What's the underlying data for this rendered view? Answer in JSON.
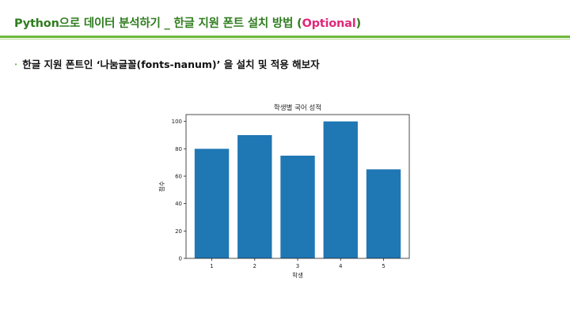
{
  "slide": {
    "title_main": "Python으로 데이터 분석하기 _ 한글 지원 폰트 설치 방법 (",
    "title_accent": "Optional",
    "title_close": ")",
    "bullet_symbol": "·",
    "bullet_text": "한글 지원 폰트인 ‘나눔글꼴(fonts-nanum)’ 을 설치 및 적용 해보자"
  },
  "colors": {
    "title": "#2e7d1e",
    "accent": "#e0287a",
    "rule": "#6fb83a",
    "bar": "#1f77b4"
  },
  "chart_data": {
    "type": "bar",
    "title": "학생별 국어 성적",
    "xlabel": "학생",
    "ylabel": "점수",
    "categories": [
      "1",
      "2",
      "3",
      "4",
      "5"
    ],
    "values": [
      80,
      90,
      75,
      100,
      65
    ],
    "ylim": [
      0,
      105
    ],
    "yticks": [
      0,
      20,
      40,
      60,
      80,
      100
    ],
    "grid": false,
    "legend": "none"
  }
}
